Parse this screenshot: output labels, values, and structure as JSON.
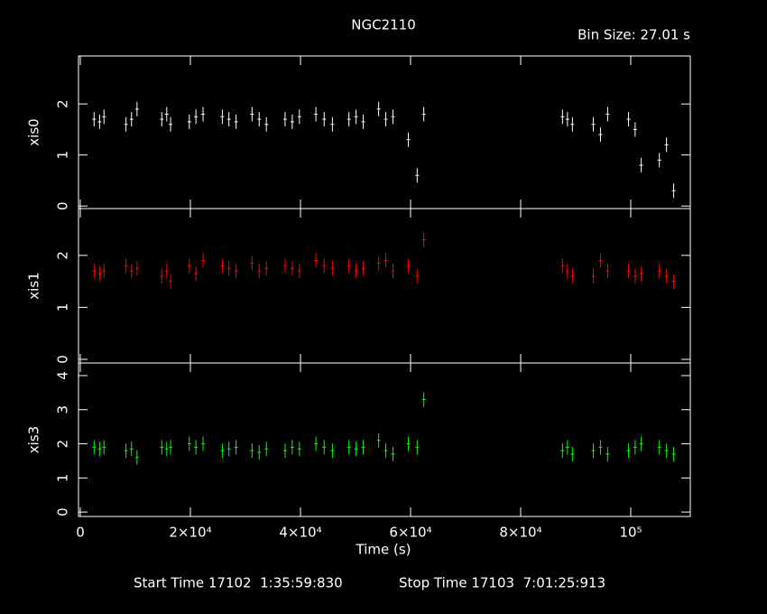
{
  "title": "NGC2110",
  "bin_size": "Bin Size: 27.01 s",
  "start_time": "Start Time 17102  1:35:59:830",
  "stop_time": "Stop Time 17103  7:01:25:913",
  "x_label": "Time (s)",
  "chart_data": [
    {
      "type": "scatter",
      "y_label": "xis0",
      "color": "#ffffff",
      "xlim": [
        -330,
        110820
      ],
      "ylim": [
        -0.05,
        2.94
      ],
      "yticks": [
        0,
        1,
        2
      ],
      "x": [
        2500,
        3500,
        4300,
        8300,
        9300,
        10300,
        14800,
        15700,
        16400,
        19800,
        21000,
        22300,
        25800,
        27000,
        28300,
        31200,
        32500,
        33800,
        37200,
        38500,
        39800,
        42800,
        44300,
        45800,
        48800,
        50100,
        51400,
        54200,
        55500,
        56800,
        59600,
        61200,
        62400,
        87600,
        88500,
        89400,
        93200,
        94500,
        95800,
        99600,
        100800,
        101900,
        105200,
        106500,
        107800
      ],
      "values": [
        1.7,
        1.65,
        1.75,
        1.6,
        1.7,
        1.9,
        1.7,
        1.8,
        1.6,
        1.65,
        1.75,
        1.8,
        1.75,
        1.7,
        1.65,
        1.8,
        1.7,
        1.6,
        1.7,
        1.65,
        1.75,
        1.8,
        1.7,
        1.6,
        1.7,
        1.75,
        1.65,
        1.9,
        1.7,
        1.75,
        1.3,
        0.6,
        1.8,
        1.75,
        1.7,
        1.6,
        1.6,
        1.4,
        1.8,
        1.7,
        1.5,
        0.8,
        0.9,
        1.2,
        0.3
      ]
    },
    {
      "type": "scatter",
      "y_label": "xis1",
      "color": "#ff0000",
      "xlim": [
        -330,
        110820
      ],
      "ylim": [
        -0.07,
        2.9
      ],
      "yticks": [
        0,
        1,
        2
      ],
      "x": [
        2500,
        3500,
        4300,
        8300,
        9300,
        10300,
        14800,
        15700,
        16400,
        19800,
        21000,
        22300,
        25800,
        27000,
        28300,
        31200,
        32500,
        33800,
        37200,
        38500,
        39800,
        42800,
        44300,
        45800,
        48800,
        50100,
        51400,
        54200,
        55500,
        56800,
        59600,
        61200,
        62400,
        87600,
        88500,
        89400,
        93200,
        94500,
        95800,
        99600,
        100800,
        101900,
        105200,
        106500,
        107800
      ],
      "values": [
        1.7,
        1.65,
        1.7,
        1.8,
        1.7,
        1.75,
        1.6,
        1.7,
        1.5,
        1.8,
        1.65,
        1.9,
        1.8,
        1.75,
        1.7,
        1.85,
        1.7,
        1.75,
        1.8,
        1.75,
        1.7,
        1.9,
        1.8,
        1.75,
        1.8,
        1.7,
        1.75,
        1.85,
        1.9,
        1.7,
        1.8,
        1.6,
        2.3,
        1.8,
        1.7,
        1.6,
        1.6,
        1.9,
        1.7,
        1.7,
        1.6,
        1.65,
        1.7,
        1.6,
        1.5
      ]
    },
    {
      "type": "scatter",
      "y_label": "xis3",
      "color": "#00ff00",
      "xlim": [
        -330,
        110820
      ],
      "ylim": [
        -0.13,
        4.37
      ],
      "yticks": [
        0,
        1,
        2,
        3,
        4
      ],
      "x": [
        2500,
        3500,
        4300,
        8300,
        9300,
        10300,
        14800,
        15700,
        16400,
        19800,
        21000,
        22300,
        25800,
        27000,
        28300,
        31200,
        32500,
        33800,
        37200,
        38500,
        39800,
        42800,
        44300,
        45800,
        48800,
        50100,
        51400,
        54200,
        55500,
        56800,
        59600,
        61200,
        62400,
        87600,
        88500,
        89400,
        93200,
        94500,
        95800,
        99600,
        100800,
        101900,
        105200,
        106500,
        107800
      ],
      "values": [
        1.9,
        1.85,
        1.9,
        1.8,
        1.85,
        1.6,
        1.9,
        1.85,
        1.9,
        2.0,
        1.9,
        2.0,
        1.8,
        1.85,
        1.9,
        1.8,
        1.75,
        1.85,
        1.8,
        1.9,
        1.85,
        2.0,
        1.9,
        1.8,
        1.9,
        1.85,
        1.9,
        2.1,
        1.8,
        1.7,
        2.0,
        1.9,
        3.3,
        1.8,
        1.9,
        1.7,
        1.8,
        1.9,
        1.7,
        1.8,
        1.9,
        2.0,
        1.9,
        1.8,
        1.7
      ],
      "xticks": [
        0,
        {
          "value": 20000,
          "label": "2×10⁴"
        },
        {
          "value": 40000,
          "label": "4×10⁴"
        },
        {
          "value": 60000,
          "label": "6×10⁴"
        },
        {
          "value": 80000,
          "label": "8×10⁴"
        },
        {
          "value": 100000,
          "label": "10⁵"
        }
      ]
    }
  ]
}
